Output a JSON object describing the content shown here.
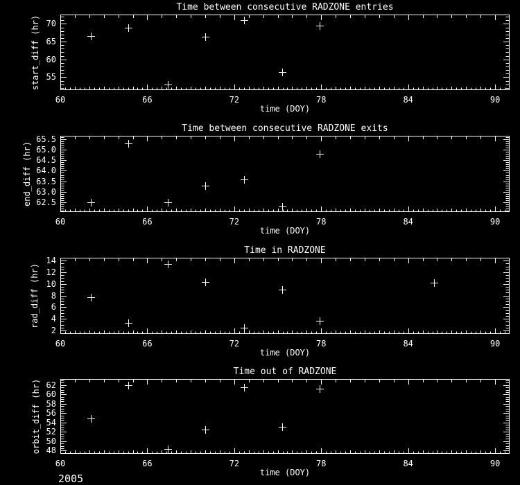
{
  "page": {
    "background": "#000000",
    "foreground": "#ffffff",
    "year_label": "2005"
  },
  "chart_data": [
    {
      "type": "scatter",
      "title": "Time between consecutive RADZONE entries",
      "xlabel": "time (DOY)",
      "ylabel": "start_diff (hr)",
      "marker": "+",
      "grid": false,
      "legend": null,
      "xlim": [
        60,
        91
      ],
      "ylim": [
        51.4,
        72.6
      ],
      "xticks": [
        60,
        66,
        72,
        78,
        84,
        90
      ],
      "xtick_labels": [
        "60",
        "66",
        "72",
        "78",
        "84",
        "90"
      ],
      "yticks": [
        55,
        60,
        65,
        70
      ],
      "ytick_labels": [
        "55",
        "60",
        "65",
        "70"
      ],
      "yminor": 1,
      "points": [
        {
          "x": 62.1,
          "y": 66.5
        },
        {
          "x": 64.7,
          "y": 69.0
        },
        {
          "x": 67.4,
          "y": 52.9
        },
        {
          "x": 70.0,
          "y": 66.4
        },
        {
          "x": 72.7,
          "y": 71.0
        },
        {
          "x": 75.3,
          "y": 56.4
        },
        {
          "x": 77.9,
          "y": 69.5
        }
      ]
    },
    {
      "type": "scatter",
      "title": "Time between consecutive RADZONE exits",
      "xlabel": "time (DOY)",
      "ylabel": "end_diff (hr)",
      "marker": "+",
      "grid": false,
      "legend": null,
      "xlim": [
        60,
        91
      ],
      "ylim": [
        62.05,
        65.65
      ],
      "xticks": [
        60,
        66,
        72,
        78,
        84,
        90
      ],
      "xtick_labels": [
        "60",
        "66",
        "72",
        "78",
        "84",
        "90"
      ],
      "yticks": [
        62.5,
        63.0,
        63.5,
        64.0,
        64.5,
        65.0,
        65.5
      ],
      "ytick_labels": [
        "62.5",
        "63.0",
        "63.5",
        "64.0",
        "64.5",
        "65.0",
        "65.5"
      ],
      "yminor": 0.1,
      "points": [
        {
          "x": 62.1,
          "y": 62.5
        },
        {
          "x": 64.7,
          "y": 65.3
        },
        {
          "x": 67.4,
          "y": 62.5
        },
        {
          "x": 70.0,
          "y": 63.3
        },
        {
          "x": 72.7,
          "y": 63.6
        },
        {
          "x": 75.3,
          "y": 62.3
        },
        {
          "x": 77.9,
          "y": 64.8
        }
      ]
    },
    {
      "type": "scatter",
      "title": "Time in RADZONE",
      "xlabel": "time (DOY)",
      "ylabel": "rad_diff (hr)",
      "marker": "+",
      "grid": false,
      "legend": null,
      "xlim": [
        60,
        91
      ],
      "ylim": [
        1.4,
        14.5
      ],
      "xticks": [
        60,
        66,
        72,
        78,
        84,
        90
      ],
      "xtick_labels": [
        "60",
        "66",
        "72",
        "78",
        "84",
        "90"
      ],
      "yticks": [
        2,
        4,
        6,
        8,
        10,
        12,
        14
      ],
      "ytick_labels": [
        "2",
        "4",
        "6",
        "8",
        "10",
        "12",
        "14"
      ],
      "yminor": 0.5,
      "points": [
        {
          "x": 62.1,
          "y": 7.7
        },
        {
          "x": 64.7,
          "y": 3.3
        },
        {
          "x": 67.4,
          "y": 13.4
        },
        {
          "x": 70.0,
          "y": 10.3
        },
        {
          "x": 72.7,
          "y": 2.5
        },
        {
          "x": 75.3,
          "y": 9.0
        },
        {
          "x": 77.9,
          "y": 3.7
        },
        {
          "x": 85.8,
          "y": 10.2
        }
      ]
    },
    {
      "type": "scatter",
      "title": "Time out of RADZONE",
      "xlabel": "time (DOY)",
      "ylabel": "orbit_diff (hr)",
      "marker": "+",
      "grid": false,
      "legend": null,
      "xlim": [
        60,
        91
      ],
      "ylim": [
        47.3,
        63.3
      ],
      "xticks": [
        60,
        66,
        72,
        78,
        84,
        90
      ],
      "xtick_labels": [
        "60",
        "66",
        "72",
        "78",
        "84",
        "90"
      ],
      "yticks": [
        48,
        50,
        52,
        54,
        56,
        58,
        60,
        62
      ],
      "ytick_labels": [
        "48",
        "50",
        "52",
        "54",
        "56",
        "58",
        "60",
        "62"
      ],
      "yminor": 0.5,
      "points": [
        {
          "x": 62.1,
          "y": 54.9
        },
        {
          "x": 64.7,
          "y": 62.0
        },
        {
          "x": 67.4,
          "y": 48.4
        },
        {
          "x": 70.0,
          "y": 52.5
        },
        {
          "x": 72.7,
          "y": 61.5
        },
        {
          "x": 75.3,
          "y": 53.1
        },
        {
          "x": 77.9,
          "y": 61.2
        }
      ]
    }
  ]
}
